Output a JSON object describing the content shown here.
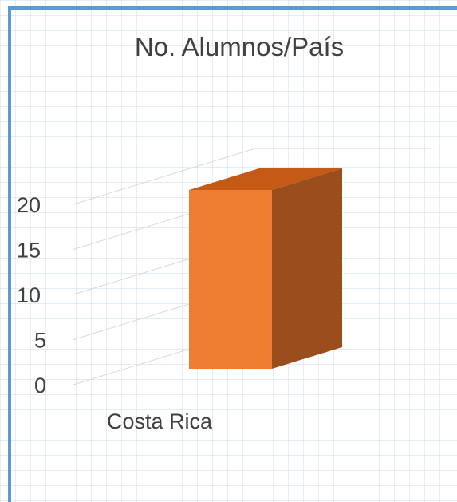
{
  "chart_data": {
    "type": "bar",
    "title": "No. Alumnos/País",
    "categories": [
      "Costa Rica"
    ],
    "values": [
      19
    ],
    "ylim": [
      0,
      20
    ],
    "yticks": [
      0,
      5,
      10,
      15,
      20
    ],
    "grid": true,
    "style": "3d-column",
    "colors": {
      "bar_front": "#ed7d31",
      "bar_side": "#9a4e1c",
      "bar_top": "#c55a17",
      "gridline": "#d9d9d9",
      "text": "#404040",
      "frame": "#5b9bd5"
    }
  }
}
